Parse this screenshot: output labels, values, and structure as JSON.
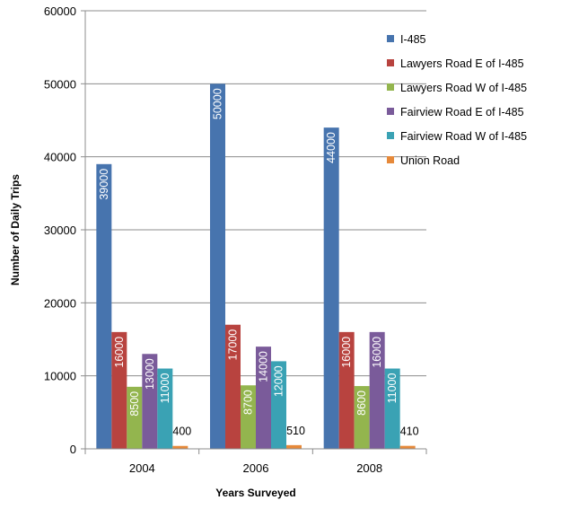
{
  "chart_data": {
    "type": "bar",
    "title": "",
    "xlabel": "Years Surveyed",
    "ylabel": "Number of Daily Trips",
    "categories": [
      "2004",
      "2006",
      "2008"
    ],
    "ylim": [
      0,
      60000
    ],
    "yticks": [
      "0",
      "10000",
      "20000",
      "30000",
      "40000",
      "50000",
      "60000"
    ],
    "grid": true,
    "legend_position": "right",
    "series": [
      {
        "name": "I-485",
        "color": "#4774AE",
        "values": [
          39000,
          50000,
          44000
        ],
        "labels": [
          "39000",
          "50000",
          "44000"
        ]
      },
      {
        "name": "Lawyers Road  E of I-485",
        "color": "#B8433F",
        "values": [
          16000,
          17000,
          16000
        ],
        "labels": [
          "16000",
          "17000",
          "16000"
        ]
      },
      {
        "name": "Lawyers Road  W of I-485",
        "color": "#93B54E",
        "values": [
          8500,
          8700,
          8600
        ],
        "labels": [
          "8500",
          "8700",
          "8600"
        ]
      },
      {
        "name": "Fairview Road  E of I-485",
        "color": "#7A5B9A",
        "values": [
          13000,
          14000,
          16000
        ],
        "labels": [
          "13000",
          "14000",
          "16000"
        ]
      },
      {
        "name": "Fairview Road  W of I-485",
        "color": "#3AA2B4",
        "values": [
          11000,
          12000,
          11000
        ],
        "labels": [
          "11000",
          "12000",
          "11000"
        ]
      },
      {
        "name": "Union Road",
        "color": "#E6893A",
        "values": [
          400,
          510,
          410
        ],
        "labels": [
          "400",
          "510",
          "410"
        ]
      }
    ]
  }
}
